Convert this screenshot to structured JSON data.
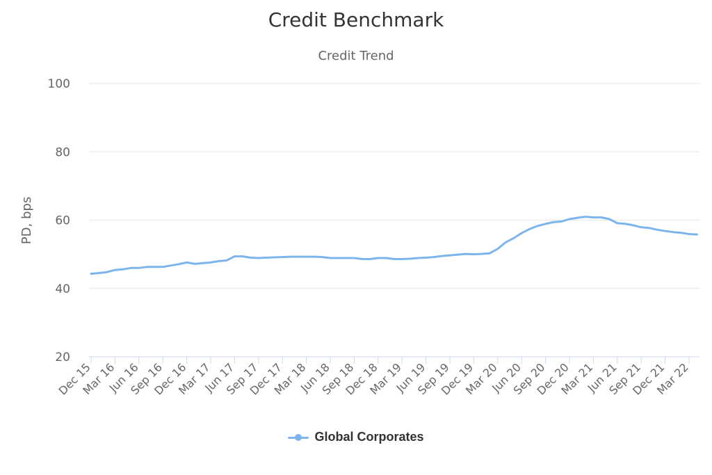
{
  "chart_data": {
    "type": "line",
    "title": "Credit Benchmark",
    "subtitle": "Credit Trend",
    "ylabel": "PD, bps",
    "xlabel": "",
    "ylim": [
      20,
      100
    ],
    "yticks": [
      20,
      40,
      60,
      80,
      100
    ],
    "grid": true,
    "legend_position": "bottom-center",
    "x": [
      "Dec 15",
      "Jan 16",
      "Feb 16",
      "Mar 16",
      "Apr 16",
      "May 16",
      "Jun 16",
      "Jul 16",
      "Aug 16",
      "Sep 16",
      "Oct 16",
      "Nov 16",
      "Dec 16",
      "Jan 17",
      "Feb 17",
      "Mar 17",
      "Apr 17",
      "May 17",
      "Jun 17",
      "Jul 17",
      "Aug 17",
      "Sep 17",
      "Oct 17",
      "Nov 17",
      "Dec 17",
      "Jan 18",
      "Feb 18",
      "Mar 18",
      "Apr 18",
      "May 18",
      "Jun 18",
      "Jul 18",
      "Aug 18",
      "Sep 18",
      "Oct 18",
      "Nov 18",
      "Dec 18",
      "Jan 19",
      "Feb 19",
      "Mar 19",
      "Apr 19",
      "May 19",
      "Jun 19",
      "Jul 19",
      "Aug 19",
      "Sep 19",
      "Oct 19",
      "Nov 19",
      "Dec 19",
      "Jan 20",
      "Feb 20",
      "Mar 20",
      "Apr 20",
      "May 20",
      "Jun 20",
      "Jul 20",
      "Aug 20",
      "Sep 20",
      "Oct 20",
      "Nov 20",
      "Dec 20",
      "Jan 21",
      "Feb 21",
      "Mar 21",
      "Apr 21",
      "May 21",
      "Jun 21",
      "Jul 21",
      "Aug 21",
      "Sep 21",
      "Oct 21",
      "Nov 21",
      "Dec 21",
      "Jan 22",
      "Feb 22",
      "Mar 22",
      "Apr 22"
    ],
    "x_tick_labels": [
      "Dec 15",
      "Mar 16",
      "Jun 16",
      "Sep 16",
      "Dec 16",
      "Mar 17",
      "Jun 17",
      "Sep 17",
      "Dec 17",
      "Mar 18",
      "Jun 18",
      "Sep 18",
      "Dec 18",
      "Mar 19",
      "Jun 19",
      "Sep 19",
      "Dec 19",
      "Mar 20",
      "Jun 20",
      "Sep 20",
      "Dec 20",
      "Mar 21",
      "Jun 21",
      "Sep 21",
      "Dec 21",
      "Mar 22"
    ],
    "series": [
      {
        "name": "Global Corporates",
        "color": "#7cb5ec",
        "values": [
          44.3,
          44.5,
          44.8,
          45.4,
          45.6,
          46.0,
          46.0,
          46.3,
          46.3,
          46.3,
          46.7,
          47.1,
          47.6,
          47.2,
          47.4,
          47.6,
          48.0,
          48.2,
          49.4,
          49.4,
          49.0,
          48.9,
          49.0,
          49.1,
          49.2,
          49.3,
          49.3,
          49.3,
          49.3,
          49.2,
          48.9,
          48.9,
          48.9,
          48.9,
          48.6,
          48.6,
          48.9,
          48.9,
          48.6,
          48.6,
          48.7,
          48.9,
          49.0,
          49.2,
          49.5,
          49.7,
          49.9,
          50.1,
          50.0,
          50.1,
          50.3,
          51.6,
          53.5,
          54.7,
          56.2,
          57.4,
          58.3,
          58.9,
          59.4,
          59.6,
          60.3,
          60.7,
          61.0,
          60.8,
          60.8,
          60.3,
          59.1,
          58.9,
          58.5,
          57.9,
          57.7,
          57.2,
          56.8,
          56.5,
          56.3,
          55.9,
          55.8
        ]
      }
    ]
  }
}
